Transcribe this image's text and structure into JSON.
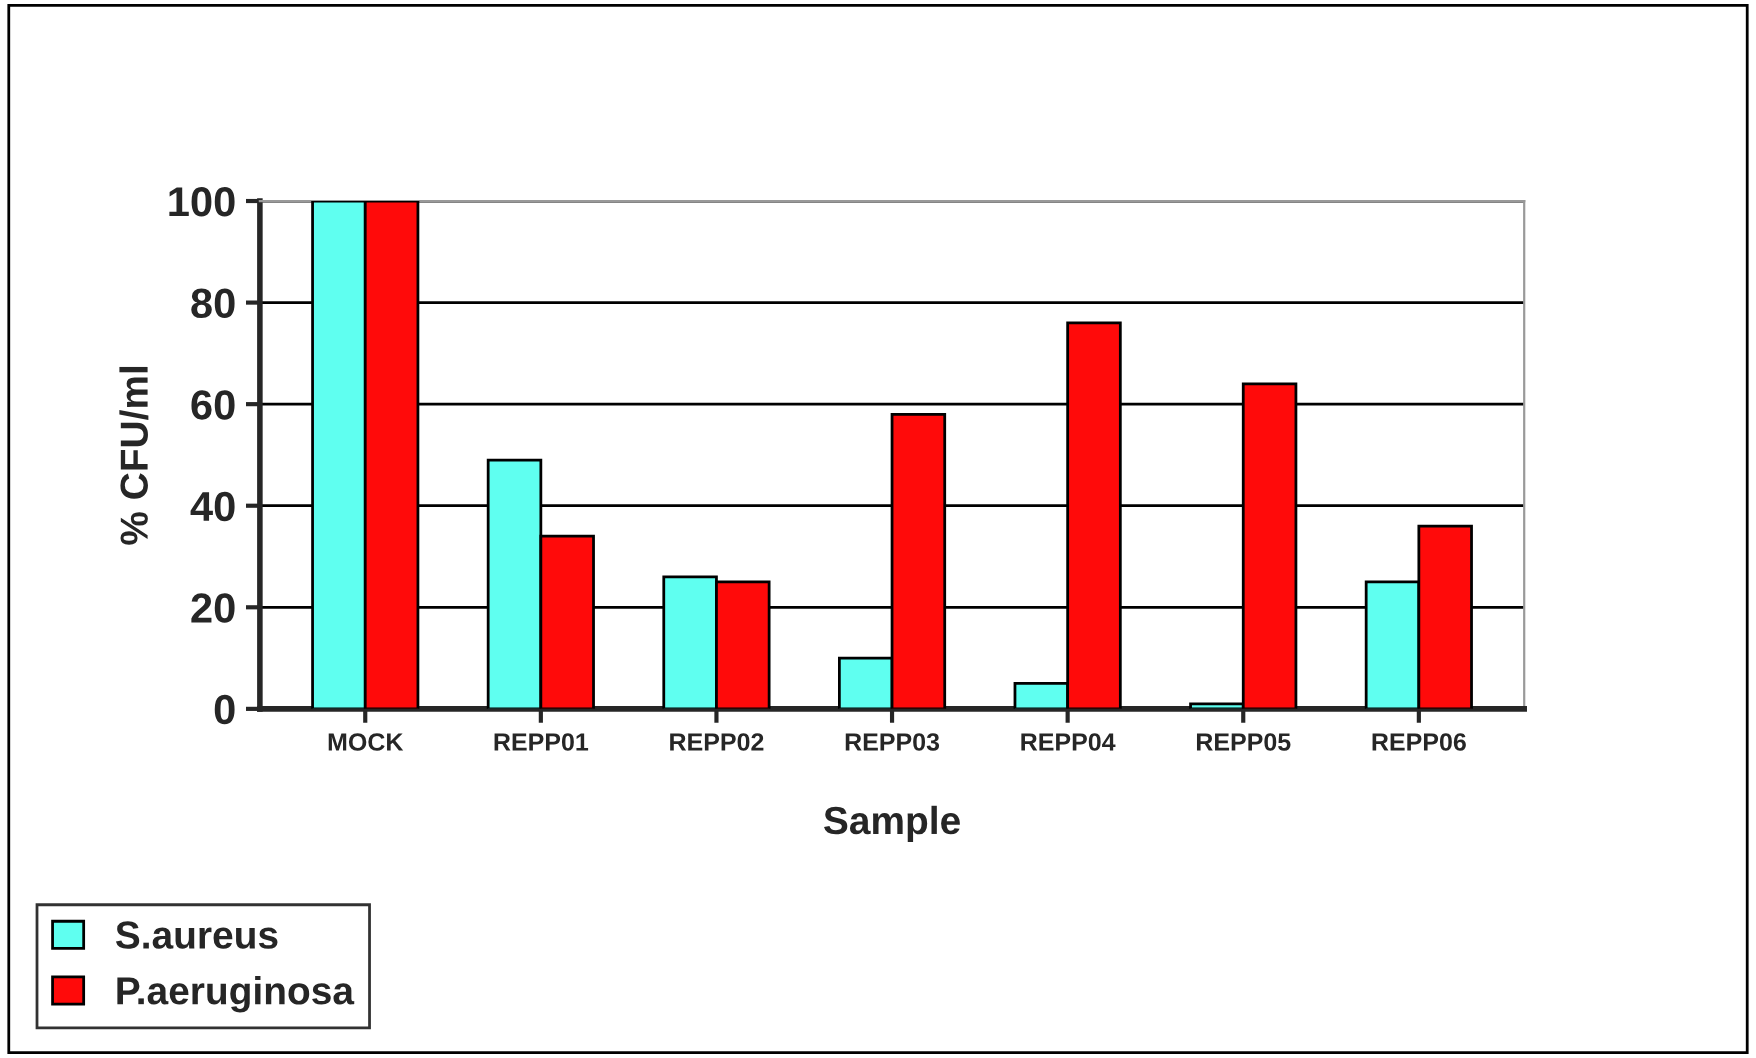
{
  "chart_data": {
    "type": "bar",
    "xlabel": "Sample",
    "ylabel": "% CFU/ml",
    "categories": [
      "MOCK",
      "REPP01",
      "REPP02",
      "REPP03",
      "REPP04",
      "REPP05",
      "REPP06"
    ],
    "series": [
      {
        "name": "S.aureus",
        "color": "#5ffff0",
        "values": [
          100,
          49,
          26,
          10,
          5,
          1,
          25
        ]
      },
      {
        "name": "P.aeruginosa",
        "color": "#ff0a0a",
        "values": [
          100,
          34,
          25,
          58,
          76,
          64,
          36
        ]
      }
    ],
    "ylim": [
      0,
      100
    ],
    "yticks": [
      0,
      20,
      40,
      60,
      80,
      100
    ],
    "grid": "y",
    "legend": "bottom left"
  }
}
